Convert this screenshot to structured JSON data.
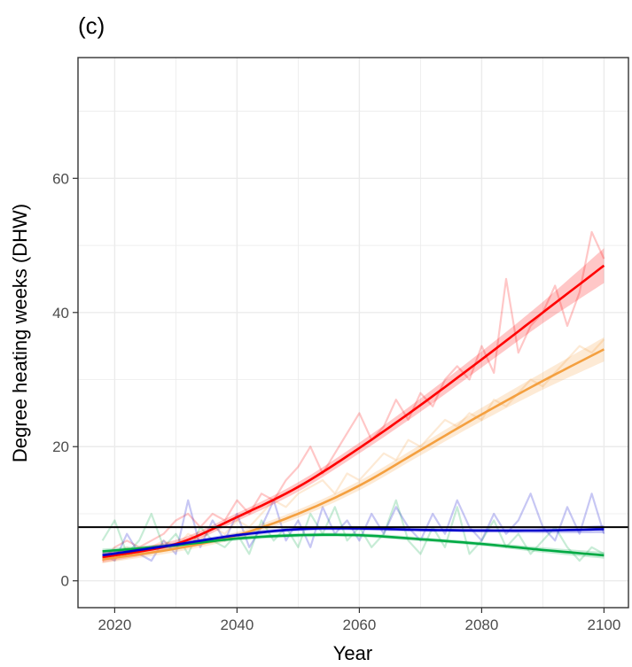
{
  "chart_data": {
    "type": "line",
    "title": "(c)",
    "xlabel": "Year",
    "ylabel": "Degree heating weeks (DHW)",
    "xlim": [
      2014,
      2104
    ],
    "ylim": [
      -4,
      78
    ],
    "x_ticks": [
      2020,
      2040,
      2060,
      2080,
      2100
    ],
    "y_ticks": [
      0,
      20,
      40,
      60
    ],
    "grid": true,
    "legend": "none",
    "threshold": {
      "y": 8,
      "color": "#000000"
    },
    "series": [
      {
        "color": "#ff0000",
        "smooth": [
          [
            2018,
            3.5
          ],
          [
            2030,
            5.5
          ],
          [
            2040,
            9.5
          ],
          [
            2050,
            14
          ],
          [
            2060,
            19.8
          ],
          [
            2070,
            26.2
          ],
          [
            2080,
            33
          ],
          [
            2090,
            40
          ],
          [
            2100,
            47
          ]
        ],
        "band_halfwidth": [
          0.8,
          0.6,
          0.6,
          0.7,
          0.8,
          1.0,
          1.2,
          1.6,
          2.6
        ],
        "raw": [
          [
            2018,
            3
          ],
          [
            2020,
            5
          ],
          [
            2022,
            6
          ],
          [
            2024,
            5
          ],
          [
            2026,
            6
          ],
          [
            2028,
            7
          ],
          [
            2030,
            9
          ],
          [
            2032,
            10
          ],
          [
            2034,
            8
          ],
          [
            2036,
            10
          ],
          [
            2038,
            9
          ],
          [
            2040,
            12
          ],
          [
            2042,
            10
          ],
          [
            2044,
            13
          ],
          [
            2046,
            12
          ],
          [
            2048,
            15
          ],
          [
            2050,
            17
          ],
          [
            2052,
            20
          ],
          [
            2054,
            16
          ],
          [
            2056,
            19
          ],
          [
            2058,
            22
          ],
          [
            2060,
            25
          ],
          [
            2062,
            21
          ],
          [
            2064,
            23
          ],
          [
            2066,
            27
          ],
          [
            2068,
            24
          ],
          [
            2070,
            28
          ],
          [
            2072,
            26
          ],
          [
            2074,
            30
          ],
          [
            2076,
            32
          ],
          [
            2078,
            30
          ],
          [
            2080,
            35
          ],
          [
            2082,
            31
          ],
          [
            2084,
            45
          ],
          [
            2086,
            34
          ],
          [
            2088,
            38
          ],
          [
            2090,
            40
          ],
          [
            2092,
            44
          ],
          [
            2094,
            38
          ],
          [
            2096,
            43
          ],
          [
            2098,
            52
          ],
          [
            2100,
            48
          ]
        ]
      },
      {
        "color": "#f4a040",
        "smooth": [
          [
            2018,
            3.2
          ],
          [
            2030,
            4.8
          ],
          [
            2040,
            6.8
          ],
          [
            2050,
            10
          ],
          [
            2060,
            14.2
          ],
          [
            2070,
            19.5
          ],
          [
            2080,
            24.8
          ],
          [
            2090,
            29.8
          ],
          [
            2100,
            34.5
          ]
        ],
        "band_halfwidth": [
          0.6,
          0.5,
          0.5,
          0.6,
          0.7,
          0.8,
          1.0,
          1.3,
          1.8
        ],
        "raw": [
          [
            2018,
            3
          ],
          [
            2020,
            4
          ],
          [
            2022,
            5
          ],
          [
            2024,
            4
          ],
          [
            2026,
            5
          ],
          [
            2028,
            6
          ],
          [
            2030,
            5
          ],
          [
            2032,
            7
          ],
          [
            2034,
            6
          ],
          [
            2036,
            8
          ],
          [
            2038,
            7
          ],
          [
            2040,
            9
          ],
          [
            2042,
            8
          ],
          [
            2044,
            10
          ],
          [
            2046,
            12
          ],
          [
            2048,
            11
          ],
          [
            2050,
            13
          ],
          [
            2052,
            14
          ],
          [
            2054,
            15
          ],
          [
            2056,
            13
          ],
          [
            2058,
            16
          ],
          [
            2060,
            15
          ],
          [
            2062,
            17
          ],
          [
            2064,
            19
          ],
          [
            2066,
            18
          ],
          [
            2068,
            21
          ],
          [
            2070,
            20
          ],
          [
            2072,
            22
          ],
          [
            2074,
            24
          ],
          [
            2076,
            23
          ],
          [
            2078,
            25
          ],
          [
            2080,
            24
          ],
          [
            2082,
            27
          ],
          [
            2084,
            26
          ],
          [
            2086,
            28
          ],
          [
            2088,
            30
          ],
          [
            2090,
            29
          ],
          [
            2092,
            31
          ],
          [
            2094,
            33
          ],
          [
            2096,
            35
          ],
          [
            2098,
            34
          ],
          [
            2100,
            36
          ]
        ]
      },
      {
        "color": "#00aa44",
        "smooth": [
          [
            2018,
            4.4
          ],
          [
            2030,
            5.3
          ],
          [
            2040,
            6.3
          ],
          [
            2050,
            6.8
          ],
          [
            2060,
            6.8
          ],
          [
            2070,
            6.2
          ],
          [
            2080,
            5.5
          ],
          [
            2090,
            4.6
          ],
          [
            2100,
            3.8
          ]
        ],
        "band_halfwidth": [
          0.4,
          0.3,
          0.3,
          0.3,
          0.3,
          0.3,
          0.3,
          0.4,
          0.5
        ],
        "raw": [
          [
            2018,
            6
          ],
          [
            2020,
            9
          ],
          [
            2022,
            4
          ],
          [
            2024,
            6
          ],
          [
            2026,
            10
          ],
          [
            2028,
            5
          ],
          [
            2030,
            7
          ],
          [
            2032,
            4
          ],
          [
            2034,
            8
          ],
          [
            2036,
            6
          ],
          [
            2038,
            5
          ],
          [
            2040,
            7
          ],
          [
            2042,
            4
          ],
          [
            2044,
            9
          ],
          [
            2046,
            6
          ],
          [
            2048,
            8
          ],
          [
            2050,
            5
          ],
          [
            2052,
            10
          ],
          [
            2054,
            7
          ],
          [
            2056,
            11
          ],
          [
            2058,
            6
          ],
          [
            2060,
            8
          ],
          [
            2062,
            5
          ],
          [
            2064,
            7
          ],
          [
            2066,
            12
          ],
          [
            2068,
            6
          ],
          [
            2070,
            4
          ],
          [
            2072,
            8
          ],
          [
            2074,
            5
          ],
          [
            2076,
            11
          ],
          [
            2078,
            4
          ],
          [
            2080,
            6
          ],
          [
            2082,
            9
          ],
          [
            2084,
            5
          ],
          [
            2086,
            7
          ],
          [
            2088,
            4
          ],
          [
            2090,
            6
          ],
          [
            2092,
            8
          ],
          [
            2094,
            5
          ],
          [
            2096,
            3
          ],
          [
            2098,
            5
          ],
          [
            2100,
            4
          ]
        ]
      },
      {
        "color": "#0000cc",
        "smooth": [
          [
            2018,
            3.8
          ],
          [
            2030,
            5.4
          ],
          [
            2040,
            6.8
          ],
          [
            2050,
            7.7
          ],
          [
            2060,
            7.8
          ],
          [
            2070,
            7.6
          ],
          [
            2080,
            7.5
          ],
          [
            2090,
            7.5
          ],
          [
            2100,
            7.7
          ]
        ],
        "band_halfwidth": [
          0.4,
          0.3,
          0.3,
          0.3,
          0.3,
          0.3,
          0.3,
          0.4,
          0.6
        ],
        "raw": [
          [
            2018,
            4
          ],
          [
            2020,
            3
          ],
          [
            2022,
            7
          ],
          [
            2024,
            4
          ],
          [
            2026,
            3
          ],
          [
            2028,
            6
          ],
          [
            2030,
            4
          ],
          [
            2032,
            12
          ],
          [
            2034,
            5
          ],
          [
            2036,
            9
          ],
          [
            2038,
            6
          ],
          [
            2040,
            10
          ],
          [
            2042,
            5
          ],
          [
            2044,
            8
          ],
          [
            2046,
            12
          ],
          [
            2048,
            6
          ],
          [
            2050,
            9
          ],
          [
            2052,
            5
          ],
          [
            2054,
            11
          ],
          [
            2056,
            7
          ],
          [
            2058,
            9
          ],
          [
            2060,
            6
          ],
          [
            2062,
            10
          ],
          [
            2064,
            7
          ],
          [
            2066,
            11
          ],
          [
            2068,
            8
          ],
          [
            2070,
            6
          ],
          [
            2072,
            10
          ],
          [
            2074,
            7
          ],
          [
            2076,
            12
          ],
          [
            2078,
            8
          ],
          [
            2080,
            6
          ],
          [
            2082,
            10
          ],
          [
            2084,
            7
          ],
          [
            2086,
            9
          ],
          [
            2088,
            13
          ],
          [
            2090,
            8
          ],
          [
            2092,
            6
          ],
          [
            2094,
            11
          ],
          [
            2096,
            7
          ],
          [
            2098,
            13
          ],
          [
            2100,
            7
          ]
        ]
      }
    ]
  }
}
